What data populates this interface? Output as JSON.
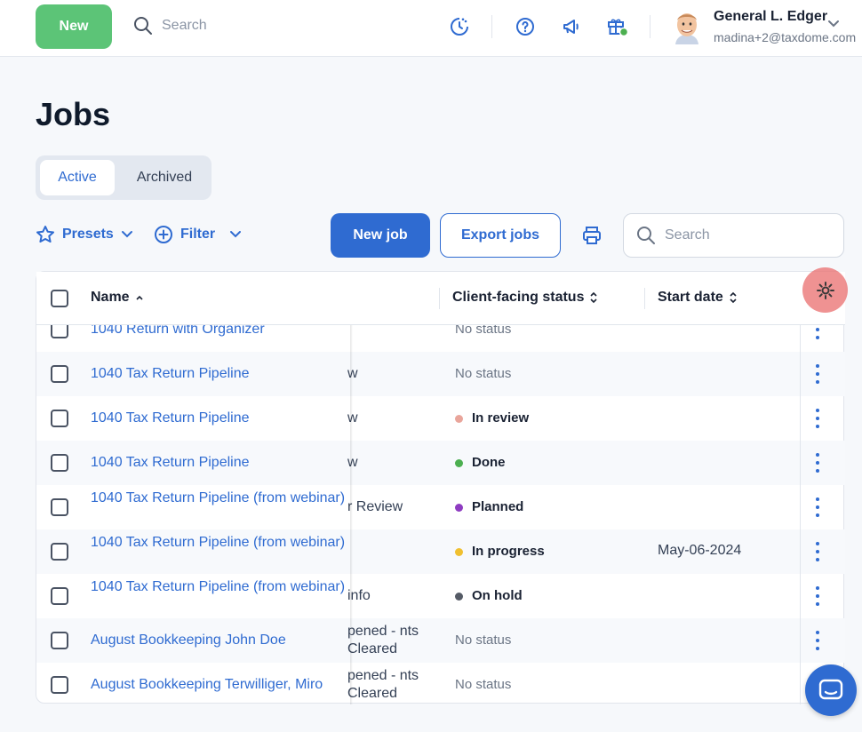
{
  "header": {
    "new_label": "New",
    "search_placeholder": "Search",
    "user_name": "General L. Edger",
    "user_email": "madina+2@taxdome.com"
  },
  "page": {
    "title": "Jobs",
    "tabs": [
      "Active",
      "Archived"
    ],
    "active_tab": "Active"
  },
  "toolbar": {
    "presets_label": "Presets",
    "filter_label": "Filter",
    "new_job_label": "New job",
    "export_label": "Export jobs",
    "search_placeholder": "Search"
  },
  "table": {
    "columns": {
      "name": "Name",
      "status": "Client-facing status",
      "start_date": "Start date"
    },
    "rows": [
      {
        "name": "1040 Return with Organizer",
        "stage": "",
        "status": "No status",
        "status_color": "",
        "start_date": ""
      },
      {
        "name": "1040 Tax Return Pipeline",
        "stage": "w",
        "status": "No status",
        "status_color": "",
        "start_date": ""
      },
      {
        "name": "1040 Tax Return Pipeline",
        "stage": "w",
        "status": "In review",
        "status_color": "#e9a59b",
        "start_date": ""
      },
      {
        "name": "1040 Tax Return Pipeline",
        "stage": "w",
        "status": "Done",
        "status_color": "#4caf50",
        "start_date": ""
      },
      {
        "name": "1040 Tax Return Pipeline (from webinar)",
        "stage": "r Review",
        "status": "Planned",
        "status_color": "#8e3cc1",
        "start_date": ""
      },
      {
        "name": "1040 Tax Return Pipeline (from webinar)",
        "stage": "",
        "status": "In progress",
        "status_color": "#f0c030",
        "start_date": "May-06-2024"
      },
      {
        "name": "1040 Tax Return Pipeline (from webinar)",
        "stage": "info",
        "status": "On hold",
        "status_color": "#555b66",
        "start_date": ""
      },
      {
        "name": "August Bookkeeping John Doe",
        "stage": "pened - nts Cleared",
        "status": "No status",
        "status_color": "",
        "start_date": ""
      },
      {
        "name": "August Bookkeeping Terwilliger, Miro",
        "stage": "pened - nts Cleared",
        "status": "No status",
        "status_color": "",
        "start_date": ""
      }
    ]
  }
}
